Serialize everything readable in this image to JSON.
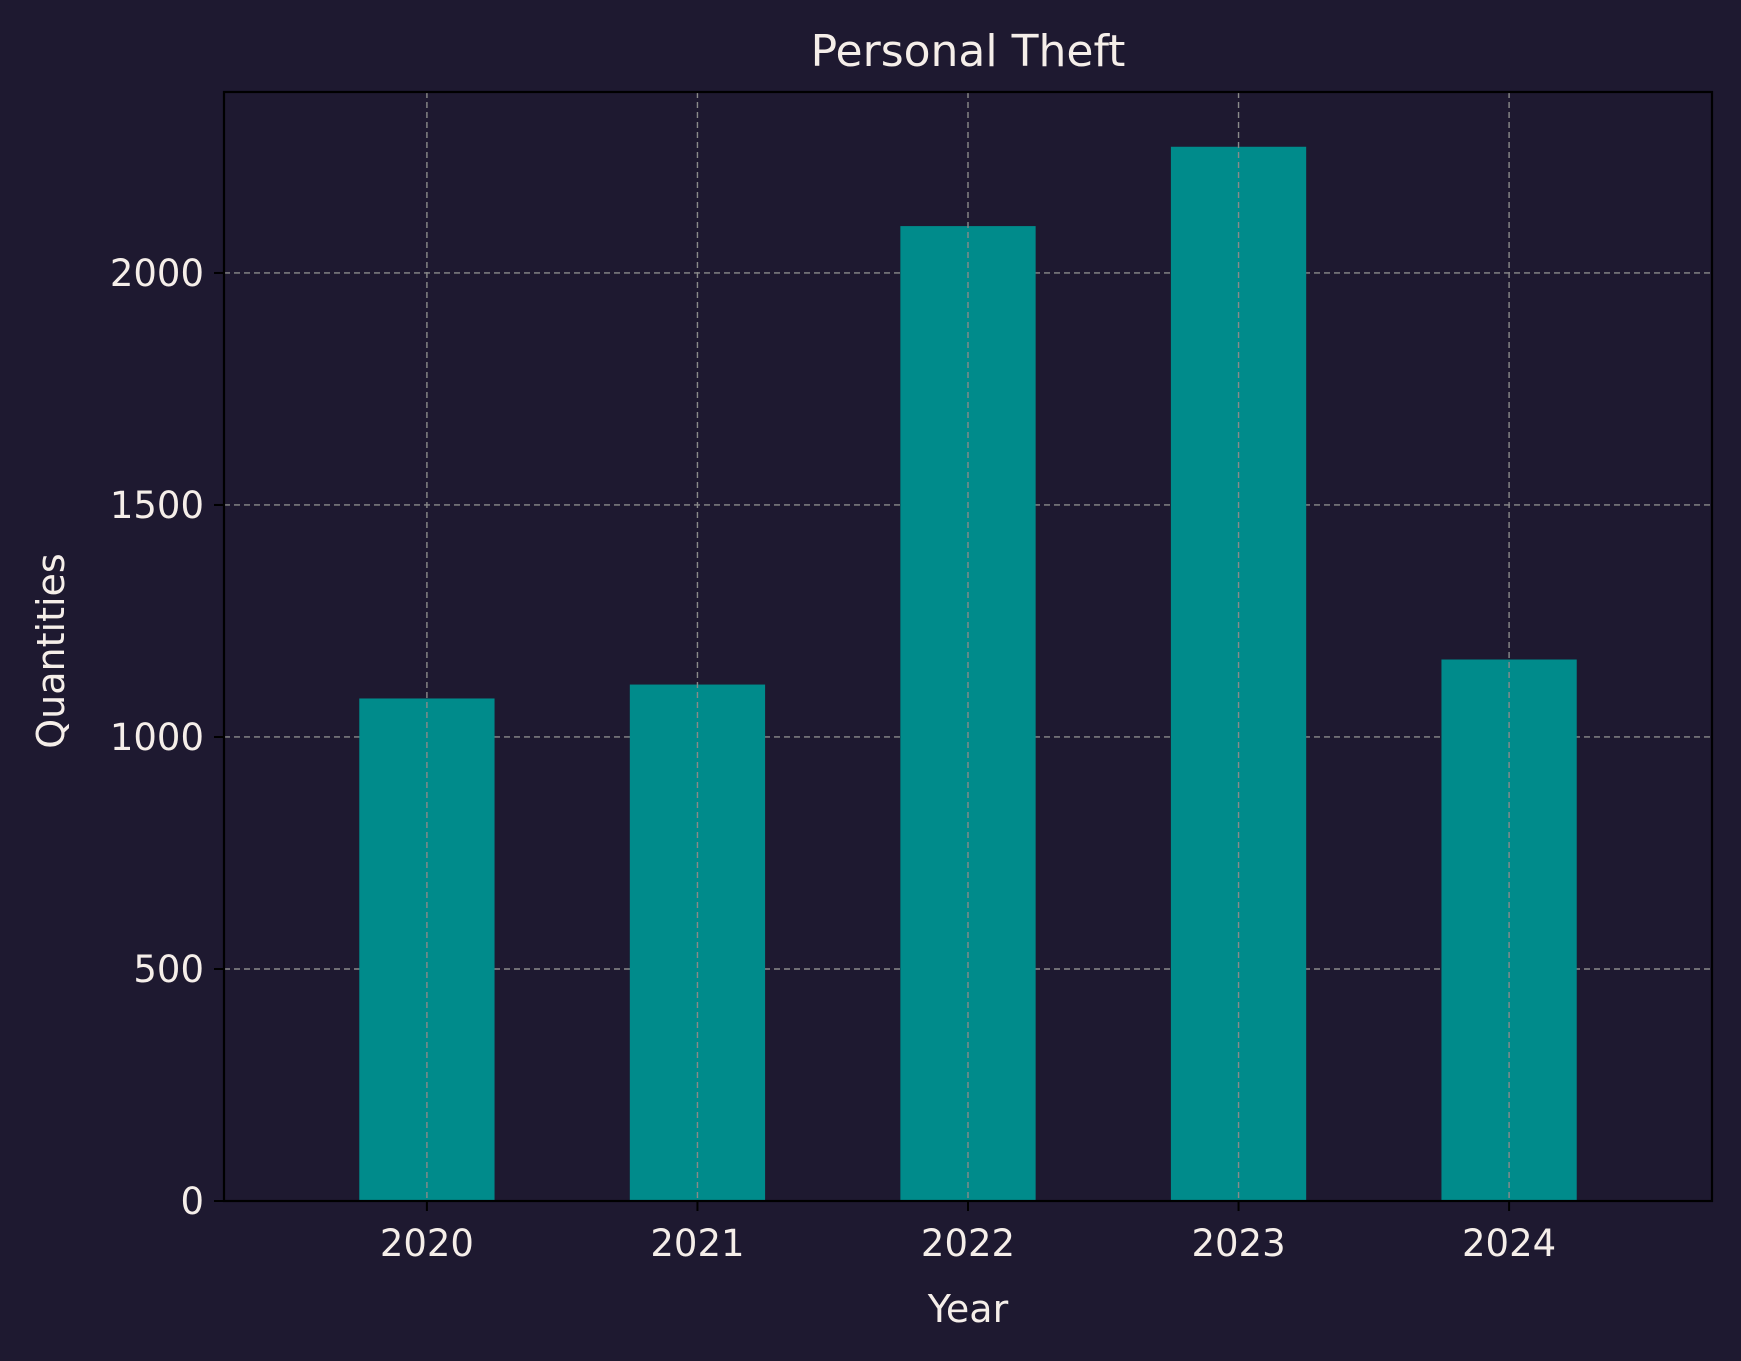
{
  "chart_data": {
    "type": "bar",
    "title": "Personal Theft",
    "xlabel": "Year",
    "ylabel": "Quantities",
    "categories": [
      "2020",
      "2021",
      "2022",
      "2023",
      "2024"
    ],
    "values": [
      1083,
      1113,
      2101,
      2272,
      1167
    ],
    "ylim": [
      0,
      2390
    ],
    "yticks": [
      0,
      500,
      1000,
      1500,
      2000
    ],
    "grid": true,
    "legend": "none",
    "colors": {
      "background": "#1e1930",
      "bar": "#008b8b",
      "grid": "#8a8a8a",
      "text": "#f5eee9",
      "axes": "#000000"
    }
  }
}
